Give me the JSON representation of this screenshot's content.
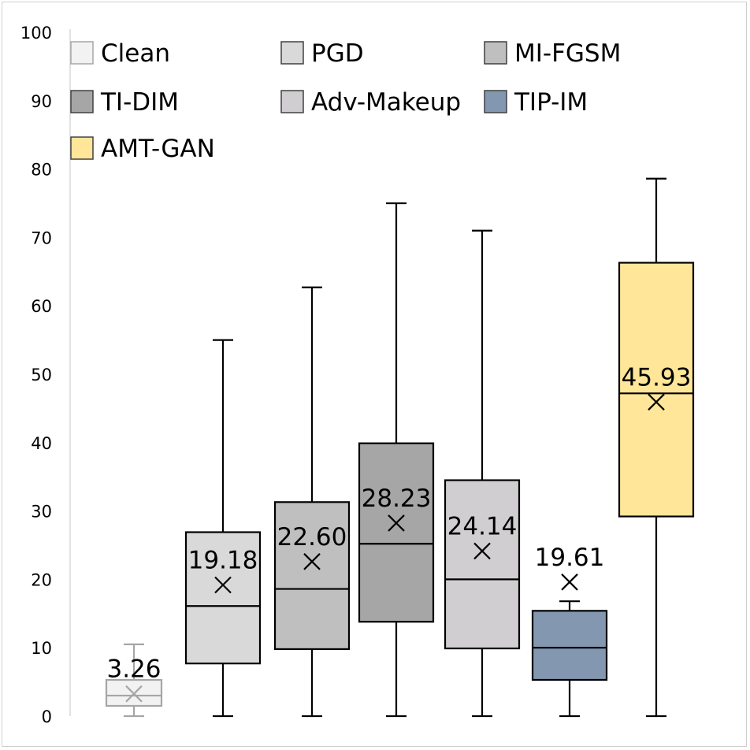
{
  "chart_data": {
    "type": "boxplot",
    "title": "",
    "xlabel": "",
    "ylabel": "",
    "ylim": [
      0,
      100
    ],
    "yticks": [
      "0",
      "10",
      "20",
      "30",
      "40",
      "50",
      "60",
      "70",
      "80",
      "90",
      "100"
    ],
    "grid": false,
    "legend_position": "top-left",
    "series": [
      {
        "name": "Clean",
        "min": 0,
        "q1": 1.5,
        "median": 3.0,
        "q3": 5.3,
        "max": 10.5,
        "mean": 3.26,
        "mean_label": "3.26",
        "color": "#f2f2f2",
        "stroke": "#a6a6a6"
      },
      {
        "name": "PGD",
        "min": 0,
        "q1": 7.7,
        "median": 16.1,
        "q3": 26.9,
        "max": 55.0,
        "mean": 19.18,
        "mean_label": "19.18",
        "color": "#d9d9d9",
        "stroke": "#000000"
      },
      {
        "name": "MI-FGSM",
        "min": 0,
        "q1": 9.8,
        "median": 18.6,
        "q3": 31.3,
        "max": 62.7,
        "mean": 22.6,
        "mean_label": "22.60",
        "color": "#bfbfbf",
        "stroke": "#000000"
      },
      {
        "name": "TI-DIM",
        "min": 0,
        "q1": 13.8,
        "median": 25.2,
        "q3": 39.9,
        "max": 75.0,
        "mean": 28.23,
        "mean_label": "28.23",
        "color": "#a6a6a6",
        "stroke": "#000000"
      },
      {
        "name": "Adv-Makeup",
        "min": 0,
        "q1": 9.9,
        "median": 20.0,
        "q3": 34.5,
        "max": 71.0,
        "mean": 24.14,
        "mean_label": "24.14",
        "color": "#d0ced0",
        "stroke": "#000000"
      },
      {
        "name": "TIP-IM",
        "min": 0,
        "q1": 5.3,
        "median": 10.0,
        "q3": 15.4,
        "max": 16.8,
        "mean": 19.61,
        "mean_label": "19.61",
        "color": "#8497b0",
        "stroke": "#000000"
      },
      {
        "name": "AMT-GAN",
        "min": 0,
        "q1": 29.2,
        "median": 47.2,
        "q3": 66.3,
        "max": 78.6,
        "mean": 45.93,
        "mean_label": "45.93",
        "color": "#ffe699",
        "stroke": "#000000"
      }
    ]
  }
}
